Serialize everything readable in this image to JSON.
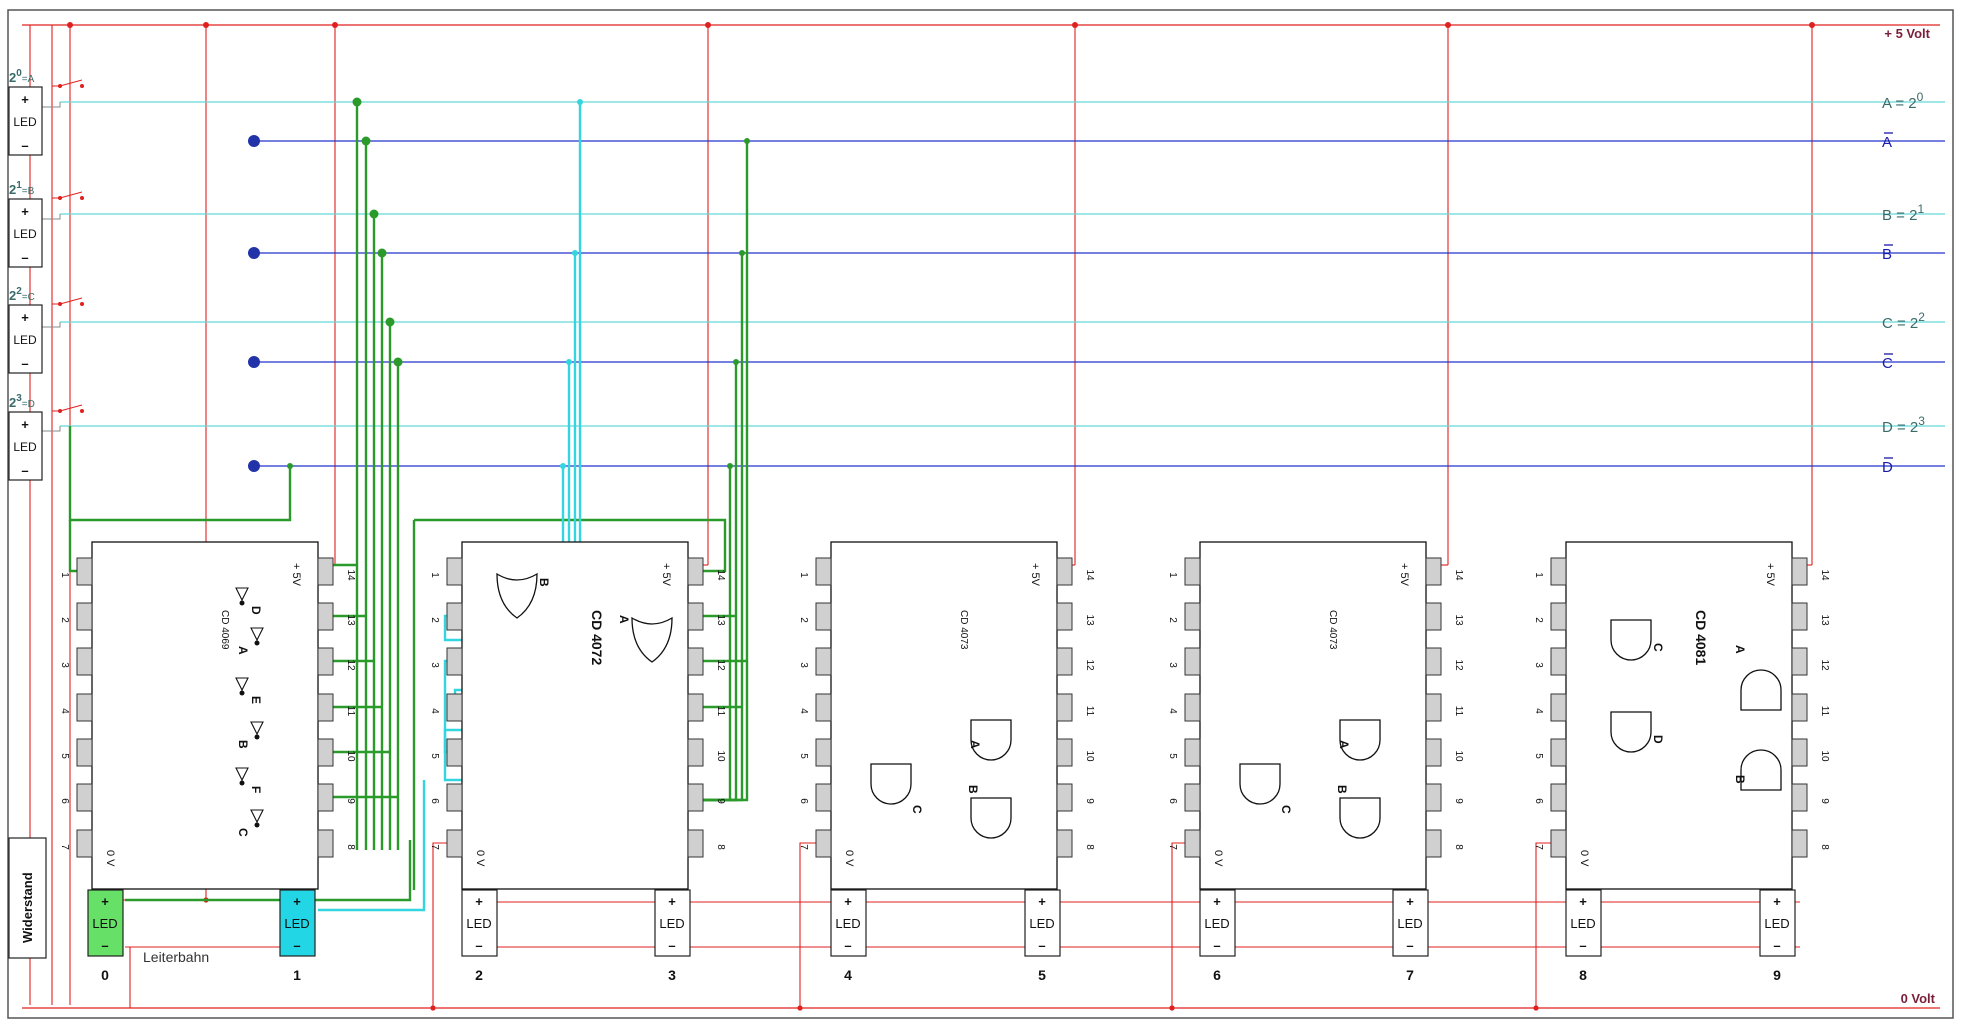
{
  "rails": {
    "vcc_label": "+ 5 Volt",
    "gnd_label": "0 Volt"
  },
  "bus_labels": [
    {
      "base": "A = 2",
      "exp": "0",
      "color": "#3a6b6b"
    },
    {
      "base": "A",
      "exp": "",
      "color": "#1a1aa8"
    },
    {
      "base": "B = 2",
      "exp": "1",
      "color": "#3a6b6b"
    },
    {
      "base": "B",
      "exp": "",
      "color": "#1a1aa8"
    },
    {
      "base": "C = 2",
      "exp": "2",
      "color": "#3a6b6b"
    },
    {
      "base": "C",
      "exp": "",
      "color": "#1a1aa8"
    },
    {
      "base": "D = 2",
      "exp": "3",
      "color": "#3a6b6b"
    },
    {
      "base": "D",
      "exp": "",
      "color": "#1a1aa8"
    }
  ],
  "switches": [
    {
      "base": "2",
      "exp": "0",
      "suffix": "=A"
    },
    {
      "base": "2",
      "exp": "1",
      "suffix": "=B"
    },
    {
      "base": "2",
      "exp": "2",
      "suffix": "=C"
    },
    {
      "base": "2",
      "exp": "3",
      "suffix": "=D"
    }
  ],
  "led": {
    "plus": "+",
    "minus": "–",
    "text": "LED"
  },
  "resistor_label": "Widerstand",
  "trace_label": "Leiterbahn",
  "chips": [
    {
      "name": "CD 4069",
      "vcc": "+ 5V",
      "gnd": "0 V",
      "gates": [
        "D",
        "A",
        "E",
        "B",
        "F",
        "C"
      ]
    },
    {
      "name": "CD 4072",
      "vcc": "+ 5V",
      "gnd": "0 V",
      "gates": [
        "B",
        "A"
      ]
    },
    {
      "name": "CD 4073",
      "vcc": "+ 5V",
      "gnd": "0 V",
      "gates": [
        "C",
        "A",
        "B"
      ]
    },
    {
      "name": "CD 4073",
      "vcc": "+ 5V",
      "gnd": "0 V",
      "gates": [
        "C",
        "A",
        "B"
      ]
    },
    {
      "name": "CD 4081",
      "vcc": "+ 5V",
      "gnd": "0 V",
      "gates": [
        "C",
        "A",
        "D",
        "B"
      ]
    }
  ],
  "pin_numbers": [
    "1",
    "2",
    "3",
    "4",
    "5",
    "6",
    "7",
    "8",
    "9",
    "10",
    "11",
    "12",
    "13",
    "14"
  ],
  "outputs": [
    "0",
    "1",
    "2",
    "3",
    "4",
    "5",
    "6",
    "7",
    "8",
    "9"
  ],
  "colors": {
    "vcc": "#e0201e",
    "green": "#2a9a2a",
    "cyan": "#33d6e0",
    "blue": "#2233cc",
    "teal_line": "#66d6d6",
    "led0": "#66e066",
    "led1": "#22d6e6"
  }
}
